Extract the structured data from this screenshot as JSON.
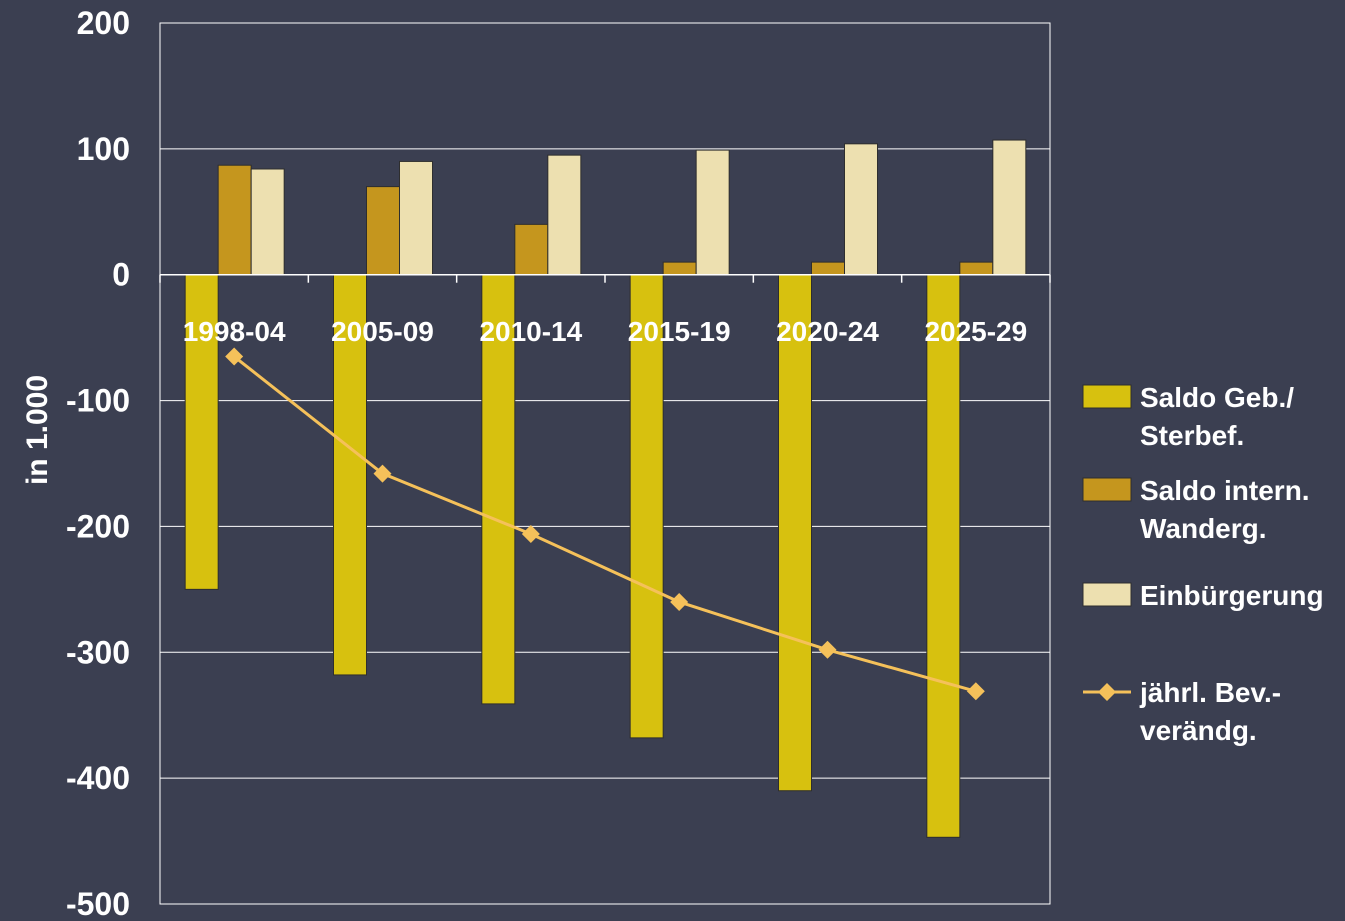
{
  "chart_data": {
    "type": "bar",
    "categories": [
      "1998-04",
      "2005-09",
      "2010-14",
      "2015-19",
      "2020-24",
      "2025-29"
    ],
    "ylabel": "in 1.000",
    "ylim": [
      -500,
      200
    ],
    "yticks": [
      "200",
      "100",
      "0",
      "-100",
      "-200",
      "-300",
      "-400",
      "-500"
    ],
    "grid": true,
    "legend_position": "right",
    "series": [
      {
        "name": "Saldo Geb./ Sterbef.",
        "name_lines": [
          "Saldo Geb./",
          "Sterbef."
        ],
        "kind": "bar",
        "color": "#d7c10f",
        "values": [
          -250,
          -318,
          -341,
          -368,
          -410,
          -447
        ]
      },
      {
        "name": "Saldo intern. Wanderg.",
        "name_lines": [
          "Saldo intern.",
          "Wanderg."
        ],
        "kind": "bar",
        "color": "#c5961e",
        "values": [
          87,
          70,
          40,
          10,
          10,
          10
        ]
      },
      {
        "name": "Einbürgerung",
        "name_lines": [
          "Einbürgerung"
        ],
        "kind": "bar",
        "color": "#ede0b0",
        "values": [
          84,
          90,
          95,
          99,
          104,
          107
        ]
      },
      {
        "name": "jährl. Bev.- verändg.",
        "name_lines": [
          "jährl. Bev.-",
          "verändg."
        ],
        "kind": "line",
        "color": "#f5c15a",
        "values": [
          -65,
          -158,
          -206,
          -260,
          -298,
          -331
        ]
      }
    ]
  }
}
